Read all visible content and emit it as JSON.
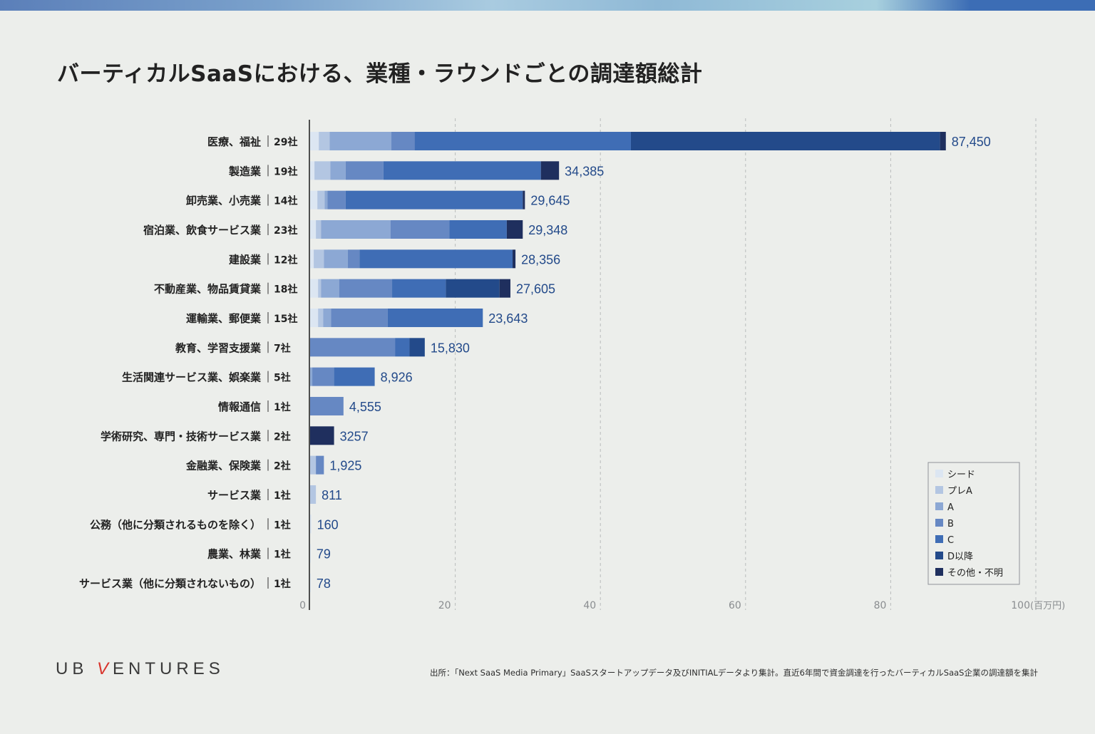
{
  "title": "バーティカルSaaSにおける、業種・ラウンドごとの調達額総計",
  "logo": {
    "prefix": "UB ",
    "accent": "V",
    "suffix": "ENTURES"
  },
  "source": "出所：「Next SaaS Media Primary」SaaSスタートアップデータ及びINITIALデータより集計。直近6年間で資金調達を行ったバーティカルSaaS企業の調達額を集計",
  "colors": {
    "seed": "#dce6f2",
    "preA": "#b3c6e2",
    "A": "#8ca8d4",
    "B": "#6688c3",
    "C": "#3f6db5",
    "D": "#234a8a",
    "other": "#1f2f5e",
    "value_label": "#234a8a"
  },
  "chart_data": {
    "type": "bar",
    "orientation": "horizontal",
    "stacked": true,
    "title": "バーティカルSaaSにおける、業種・ラウンドごとの調達額総計",
    "xlabel": "",
    "unit_label": "(百万円)",
    "xlim": [
      0,
      100
    ],
    "xticks": [
      "0",
      "20",
      "40",
      "60",
      "80",
      "100"
    ],
    "grid": true,
    "legend_position": "bottom-right",
    "series_names": [
      "シード",
      "プレA",
      "A",
      "B",
      "C",
      "D以降",
      "その他・不明"
    ],
    "rows": [
      {
        "category": "医療、福祉",
        "count": "29社",
        "total_label": "87,450",
        "segments": [
          1.2,
          1.5,
          8.5,
          3.2,
          29.8,
          42.6,
          0.8
        ]
      },
      {
        "category": "製造業",
        "count": "19社",
        "total_label": "34,385",
        "segments": [
          0.6,
          2.2,
          2.1,
          5.2,
          21.7,
          0,
          2.5
        ]
      },
      {
        "category": "卸売業、小売業",
        "count": "14社",
        "total_label": "29,645",
        "segments": [
          1.0,
          1.0,
          0.4,
          2.5,
          24.4,
          0,
          0.3
        ]
      },
      {
        "category": "宿泊業、飲食サービス業",
        "count": "23社",
        "total_label": "29,348",
        "segments": [
          0.8,
          0.7,
          9.6,
          8.1,
          7.9,
          0,
          2.2
        ]
      },
      {
        "category": "建設業",
        "count": "12社",
        "total_label": "28,356",
        "segments": [
          0.5,
          1.4,
          3.3,
          1.6,
          21.1,
          0,
          0.4
        ]
      },
      {
        "category": "不動産業、物品賃貸業",
        "count": "18社",
        "total_label": "27,605",
        "segments": [
          1.1,
          0.4,
          2.5,
          7.3,
          7.4,
          7.4,
          1.5
        ]
      },
      {
        "category": "運輸業、郵便業",
        "count": "15社",
        "total_label": "23,643",
        "segments": [
          1.1,
          0.7,
          1.1,
          7.8,
          13.1,
          0,
          0
        ]
      },
      {
        "category": "教育、学習支援業",
        "count": "7社",
        "total_label": "15,830",
        "segments": [
          0,
          0,
          0,
          11.7,
          2.0,
          2.1,
          0
        ]
      },
      {
        "category": "生活関連サービス業、娯楽業",
        "count": "5社",
        "total_label": "8,926",
        "segments": [
          0,
          0,
          0.3,
          3.0,
          5.6,
          0,
          0
        ]
      },
      {
        "category": "情報通信",
        "count": "1社",
        "total_label": "4,555",
        "segments": [
          0,
          0,
          0,
          4.6,
          0,
          0,
          0
        ]
      },
      {
        "category": "学術研究、専門・技術サービス業",
        "count": "2社",
        "total_label": "3257",
        "segments": [
          0,
          0,
          0,
          0,
          0,
          0,
          3.3
        ]
      },
      {
        "category": "金融業、保険業",
        "count": "2社",
        "total_label": "1,925",
        "segments": [
          0,
          0.8,
          0,
          1.1,
          0,
          0,
          0
        ]
      },
      {
        "category": "サービス業",
        "count": "1社",
        "total_label": "811",
        "segments": [
          0,
          0.8,
          0,
          0,
          0,
          0,
          0
        ]
      },
      {
        "category": "公務（他に分類されるものを除く）",
        "count": "1社",
        "total_label": "160",
        "segments": [
          0.16,
          0,
          0,
          0,
          0,
          0,
          0
        ]
      },
      {
        "category": "農業、林業",
        "count": "1社",
        "total_label": "79",
        "segments": [
          0.08,
          0,
          0,
          0,
          0,
          0,
          0
        ]
      },
      {
        "category": "サービス業（他に分類されないもの）",
        "count": "1社",
        "total_label": "78",
        "segments": [
          0.08,
          0,
          0,
          0,
          0,
          0,
          0
        ]
      }
    ]
  }
}
